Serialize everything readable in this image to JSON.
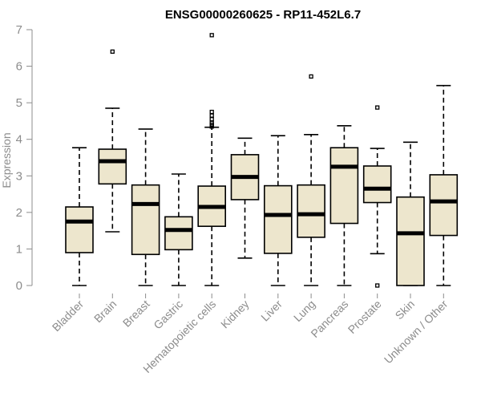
{
  "chart_data": {
    "type": "boxplot",
    "title": "ENSG00000260625 - RP11-452L6.7",
    "xlabel": "",
    "ylabel": "Expression",
    "ylim": [
      0,
      7
    ],
    "yticks": [
      0,
      1,
      2,
      3,
      4,
      5,
      6,
      7
    ],
    "categories": [
      "Bladder",
      "Brain",
      "Breast",
      "Gastric",
      "Hematopoietic cells",
      "Kidney",
      "Liver",
      "Lung",
      "Pancreas",
      "Prostate",
      "Skin",
      "Unknown / Other"
    ],
    "series": [
      {
        "name": "Bladder",
        "min": 0,
        "q1": 0.9,
        "median": 1.75,
        "q3": 2.15,
        "max": 3.77,
        "outliers": []
      },
      {
        "name": "Brain",
        "min": 1.47,
        "q1": 2.78,
        "median": 3.4,
        "q3": 3.73,
        "max": 4.85,
        "outliers": [
          6.4
        ]
      },
      {
        "name": "Breast",
        "min": 0,
        "q1": 0.85,
        "median": 2.23,
        "q3": 2.75,
        "max": 4.28,
        "outliers": []
      },
      {
        "name": "Gastric",
        "min": 0,
        "q1": 0.98,
        "median": 1.52,
        "q3": 1.88,
        "max": 3.05,
        "outliers": []
      },
      {
        "name": "Hematopoietic cells",
        "min": 0,
        "q1": 1.62,
        "median": 2.15,
        "q3": 2.72,
        "max": 4.33,
        "outliers": [
          6.85,
          4.75,
          4.65,
          4.55,
          4.45,
          4.4,
          4.35
        ]
      },
      {
        "name": "Kidney",
        "min": 0.75,
        "q1": 2.35,
        "median": 2.97,
        "q3": 3.58,
        "max": 4.03,
        "outliers": []
      },
      {
        "name": "Liver",
        "min": 0,
        "q1": 0.88,
        "median": 1.93,
        "q3": 2.73,
        "max": 4.1,
        "outliers": []
      },
      {
        "name": "Lung",
        "min": 0,
        "q1": 1.32,
        "median": 1.95,
        "q3": 2.75,
        "max": 4.13,
        "outliers": [
          5.72
        ]
      },
      {
        "name": "Pancreas",
        "min": 0,
        "q1": 1.7,
        "median": 3.25,
        "q3": 3.77,
        "max": 4.37,
        "outliers": []
      },
      {
        "name": "Prostate",
        "min": 0.87,
        "q1": 2.27,
        "median": 2.65,
        "q3": 3.27,
        "max": 3.75,
        "outliers": [
          4.87,
          0
        ]
      },
      {
        "name": "Skin",
        "min": 0,
        "q1": 0,
        "median": 1.43,
        "q3": 2.42,
        "max": 3.92,
        "outliers": []
      },
      {
        "name": "Unknown / Other",
        "min": 0,
        "q1": 1.37,
        "median": 2.3,
        "q3": 3.03,
        "max": 5.47,
        "outliers": []
      }
    ]
  },
  "colors": {
    "box_fill": "#ede6cd",
    "axis": "#8c8c8c",
    "stroke": "#000000"
  }
}
